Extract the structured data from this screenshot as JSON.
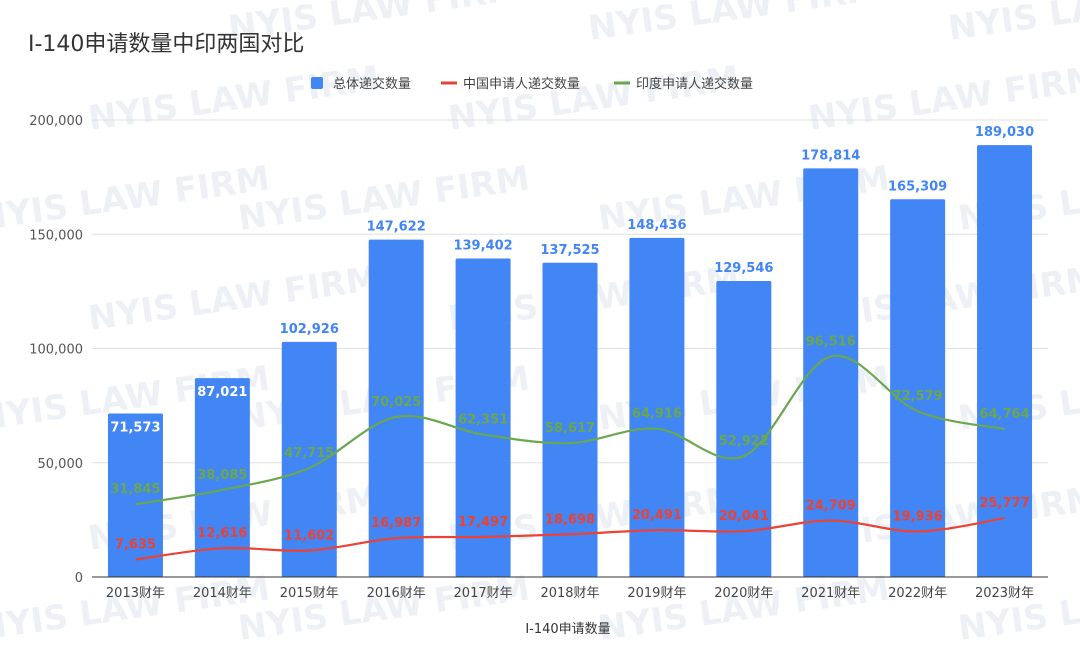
{
  "watermark": "NYIS LAW FIRM",
  "colors": {
    "total": "#4285f4",
    "china": "#ea4335",
    "india": "#6aa84f",
    "grid": "#e0e0e0",
    "axis": "#333333"
  },
  "chart_data": {
    "type": "bar",
    "title": "I-140申请数量中印两国对比",
    "xlabel": "I-140申请数量",
    "ylabel": "",
    "ylim": [
      0,
      200000
    ],
    "yticks": [
      0,
      50000,
      100000,
      150000,
      200000
    ],
    "ytick_labels": [
      "0",
      "50,000",
      "100,000",
      "150,000",
      "200,000"
    ],
    "grid": true,
    "legend_position": "top",
    "categories": [
      "2013财年",
      "2014财年",
      "2015财年",
      "2016财年",
      "2017财年",
      "2018财年",
      "2019财年",
      "2020财年",
      "2021财年",
      "2022财年",
      "2023财年"
    ],
    "series": [
      {
        "name": "总体递交数量",
        "kind": "bar",
        "values": [
          71573,
          87021,
          102926,
          147622,
          139402,
          137525,
          148436,
          129546,
          178814,
          165309,
          189030
        ],
        "labels": [
          "71,573",
          "87,021",
          "102,926",
          "147,622",
          "139,402",
          "137,525",
          "148,436",
          "129,546",
          "178,814",
          "165,309",
          "189,030"
        ]
      },
      {
        "name": "中国申请人递交数量",
        "kind": "line",
        "values": [
          7635,
          12616,
          11602,
          16987,
          17497,
          18698,
          20491,
          20041,
          24709,
          19936,
          25777
        ],
        "labels": [
          "7,635",
          "12,616",
          "11,602",
          "16,987",
          "17,497",
          "18,698",
          "20,491",
          "20,041",
          "24,709",
          "19,936",
          "25,777"
        ]
      },
      {
        "name": "印度申请人递交数量",
        "kind": "line",
        "values": [
          31845,
          38085,
          47715,
          70025,
          62351,
          58617,
          64916,
          52922,
          96516,
          72579,
          64764
        ],
        "labels": [
          "31,845",
          "38,085",
          "47,715",
          "70,025",
          "62,351",
          "58,617",
          "64,916",
          "52,922",
          "96,516",
          "72,579",
          "64,764"
        ]
      }
    ]
  }
}
